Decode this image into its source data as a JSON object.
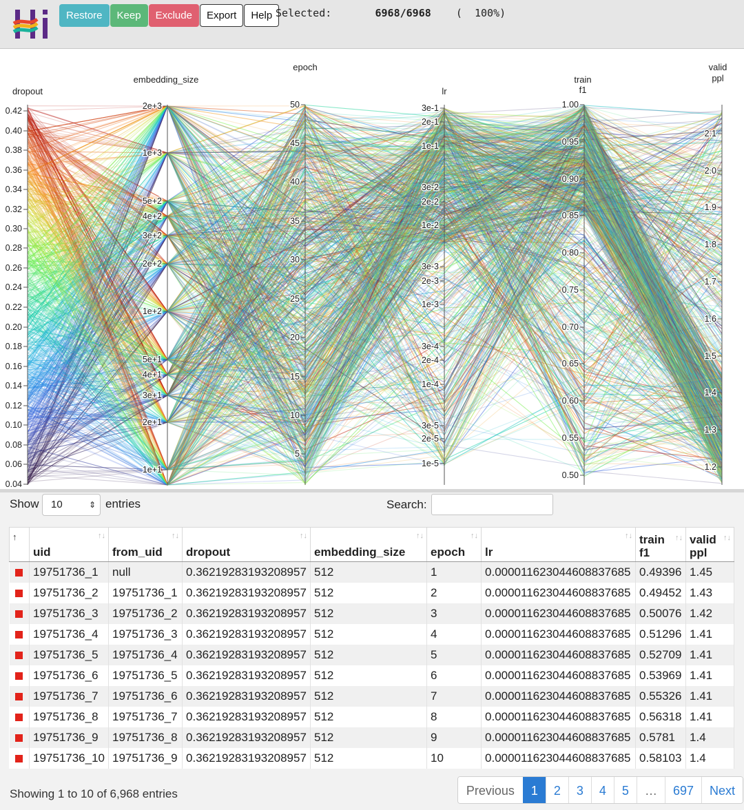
{
  "header": {
    "buttons": {
      "restore": "Restore",
      "keep": "Keep",
      "exclude": "Exclude",
      "export": "Export",
      "help": "Help"
    },
    "selected_label": "Selected:",
    "selected_count": "6968/6968",
    "selected_pct": "(  100%)"
  },
  "colors": {
    "restore": "#4fb6c3",
    "keep": "#5cb879",
    "exclude": "#e06070",
    "accent": "#2a7bd3",
    "row_marker": "#e2231a"
  },
  "plot": {
    "axes": [
      {
        "key": "dropout",
        "title_lines": [
          "dropout"
        ],
        "ticks": [
          "0.42",
          "0.40",
          "0.38",
          "0.36",
          "0.34",
          "0.32",
          "0.30",
          "0.28",
          "0.26",
          "0.24",
          "0.22",
          "0.20",
          "0.18",
          "0.16",
          "0.14",
          "0.12",
          "0.10",
          "0.08",
          "0.06",
          "0.04"
        ]
      },
      {
        "key": "embedding_size",
        "title_lines": [
          "embedding_size"
        ],
        "ticks": [
          "2e+3",
          "1e+3",
          "5e+2",
          "4e+2",
          "3e+2",
          "2e+2",
          "1e+2",
          "5e+1",
          "4e+1",
          "3e+1",
          "2e+1",
          "1e+1"
        ]
      },
      {
        "key": "epoch",
        "title_lines": [
          "epoch"
        ],
        "ticks": [
          "50",
          "45",
          "40",
          "35",
          "30",
          "25",
          "20",
          "15",
          "10",
          "5"
        ]
      },
      {
        "key": "lr",
        "title_lines": [
          "lr"
        ],
        "ticks": [
          "3e-1",
          "2e-1",
          "1e-1",
          "3e-2",
          "2e-2",
          "1e-2",
          "3e-3",
          "2e-3",
          "1e-3",
          "3e-4",
          "2e-4",
          "1e-4",
          "3e-5",
          "2e-5",
          "1e-5"
        ]
      },
      {
        "key": "train_f1",
        "title_lines": [
          "train",
          "f1"
        ],
        "ticks": [
          "1.00",
          "0.95",
          "0.90",
          "0.85",
          "0.80",
          "0.75",
          "0.70",
          "0.65",
          "0.60",
          "0.55",
          "0.50"
        ]
      },
      {
        "key": "valid_ppl",
        "title_lines": [
          "valid",
          "ppl"
        ],
        "ticks": [
          "2.1",
          "2.0",
          "1.9",
          "1.8",
          "1.7",
          "1.6",
          "1.5",
          "1.4",
          "1.3",
          "1.2"
        ]
      }
    ]
  },
  "controls": {
    "show_label": "Show",
    "page_size": "10",
    "entries_label": "entries",
    "search_label": "Search:",
    "search_value": ""
  },
  "table": {
    "sort_glyph": "↑↓",
    "sort_active_glyph": "↑",
    "columns": [
      "uid",
      "from_uid",
      "dropout",
      "embedding_size",
      "epoch",
      "lr",
      "train f1",
      "valid ppl"
    ],
    "rows": [
      [
        "19751736_1",
        "null",
        "0.36219283193208957",
        "512",
        "1",
        "0.000011623044608837685",
        "0.49396",
        "1.45"
      ],
      [
        "19751736_2",
        "19751736_1",
        "0.36219283193208957",
        "512",
        "2",
        "0.000011623044608837685",
        "0.49452",
        "1.43"
      ],
      [
        "19751736_3",
        "19751736_2",
        "0.36219283193208957",
        "512",
        "3",
        "0.000011623044608837685",
        "0.50076",
        "1.42"
      ],
      [
        "19751736_4",
        "19751736_3",
        "0.36219283193208957",
        "512",
        "4",
        "0.000011623044608837685",
        "0.51296",
        "1.41"
      ],
      [
        "19751736_5",
        "19751736_4",
        "0.36219283193208957",
        "512",
        "5",
        "0.000011623044608837685",
        "0.52709",
        "1.41"
      ],
      [
        "19751736_6",
        "19751736_5",
        "0.36219283193208957",
        "512",
        "6",
        "0.000011623044608837685",
        "0.53969",
        "1.41"
      ],
      [
        "19751736_7",
        "19751736_6",
        "0.36219283193208957",
        "512",
        "7",
        "0.000011623044608837685",
        "0.55326",
        "1.41"
      ],
      [
        "19751736_8",
        "19751736_7",
        "0.36219283193208957",
        "512",
        "8",
        "0.000011623044608837685",
        "0.56318",
        "1.41"
      ],
      [
        "19751736_9",
        "19751736_8",
        "0.36219283193208957",
        "512",
        "9",
        "0.000011623044608837685",
        "0.5781",
        "1.4"
      ],
      [
        "19751736_10",
        "19751736_9",
        "0.36219283193208957",
        "512",
        "10",
        "0.000011623044608837685",
        "0.58103",
        "1.4"
      ]
    ]
  },
  "footer": {
    "info": "Showing 1 to 10 of 6,968 entries",
    "pagination": [
      "Previous",
      "1",
      "2",
      "3",
      "4",
      "5",
      "…",
      "697",
      "Next"
    ],
    "active_page": "1"
  }
}
